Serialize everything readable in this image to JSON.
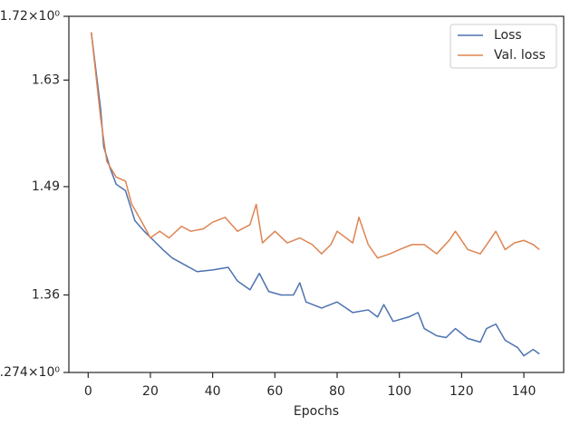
{
  "chart_data": {
    "type": "line",
    "xlabel": "Epochs",
    "log_y": true,
    "legend": "upper right",
    "xlim": [
      -6.2,
      152.8
    ],
    "xticks": [
      0,
      20,
      40,
      60,
      80,
      100,
      120,
      140
    ],
    "ylim": [
      1.274,
      1.72
    ],
    "yticks": [
      {
        "value": 1.274,
        "label": "1.274×10⁰"
      },
      1.36,
      1.49,
      1.63,
      {
        "value": 1.72,
        "label": "1.72×10⁰"
      }
    ],
    "series": [
      {
        "name": "Loss",
        "color": "#4c72b0",
        "x": [
          1,
          4,
          5,
          7,
          9,
          12,
          15,
          18,
          21,
          24,
          27,
          30,
          35,
          40,
          45,
          48,
          52,
          55,
          58,
          62,
          66,
          68,
          70,
          75,
          80,
          85,
          90,
          93,
          95,
          98,
          103,
          106,
          108,
          112,
          115,
          118,
          122,
          126,
          128,
          131,
          134,
          138,
          140,
          143,
          145
        ],
        "values": [
          1.697,
          1.591,
          1.541,
          1.514,
          1.493,
          1.485,
          1.448,
          1.435,
          1.424,
          1.413,
          1.403,
          1.397,
          1.387,
          1.389,
          1.392,
          1.376,
          1.366,
          1.385,
          1.364,
          1.36,
          1.36,
          1.374,
          1.352,
          1.345,
          1.352,
          1.34,
          1.343,
          1.335,
          1.349,
          1.33,
          1.335,
          1.34,
          1.322,
          1.314,
          1.312,
          1.322,
          1.311,
          1.307,
          1.322,
          1.327,
          1.309,
          1.301,
          1.292,
          1.299,
          1.294
        ]
      },
      {
        "name": "Val. loss",
        "color": "#dd8452",
        "x": [
          1,
          4,
          6,
          9,
          12,
          14,
          17,
          20,
          23,
          26,
          30,
          33,
          37,
          40,
          44,
          48,
          52,
          54,
          56,
          60,
          64,
          68,
          72,
          75,
          78,
          80,
          85,
          87,
          90,
          93,
          97,
          100,
          104,
          108,
          112,
          116,
          118,
          122,
          126,
          129,
          131,
          134,
          137,
          140,
          143,
          145
        ],
        "values": [
          1.697,
          1.579,
          1.522,
          1.502,
          1.497,
          1.468,
          1.448,
          1.427,
          1.435,
          1.427,
          1.441,
          1.435,
          1.438,
          1.446,
          1.452,
          1.435,
          1.443,
          1.468,
          1.421,
          1.435,
          1.421,
          1.427,
          1.419,
          1.408,
          1.419,
          1.435,
          1.421,
          1.452,
          1.419,
          1.403,
          1.408,
          1.413,
          1.419,
          1.419,
          1.408,
          1.424,
          1.435,
          1.413,
          1.408,
          1.424,
          1.435,
          1.413,
          1.421,
          1.424,
          1.419,
          1.413
        ]
      }
    ]
  }
}
